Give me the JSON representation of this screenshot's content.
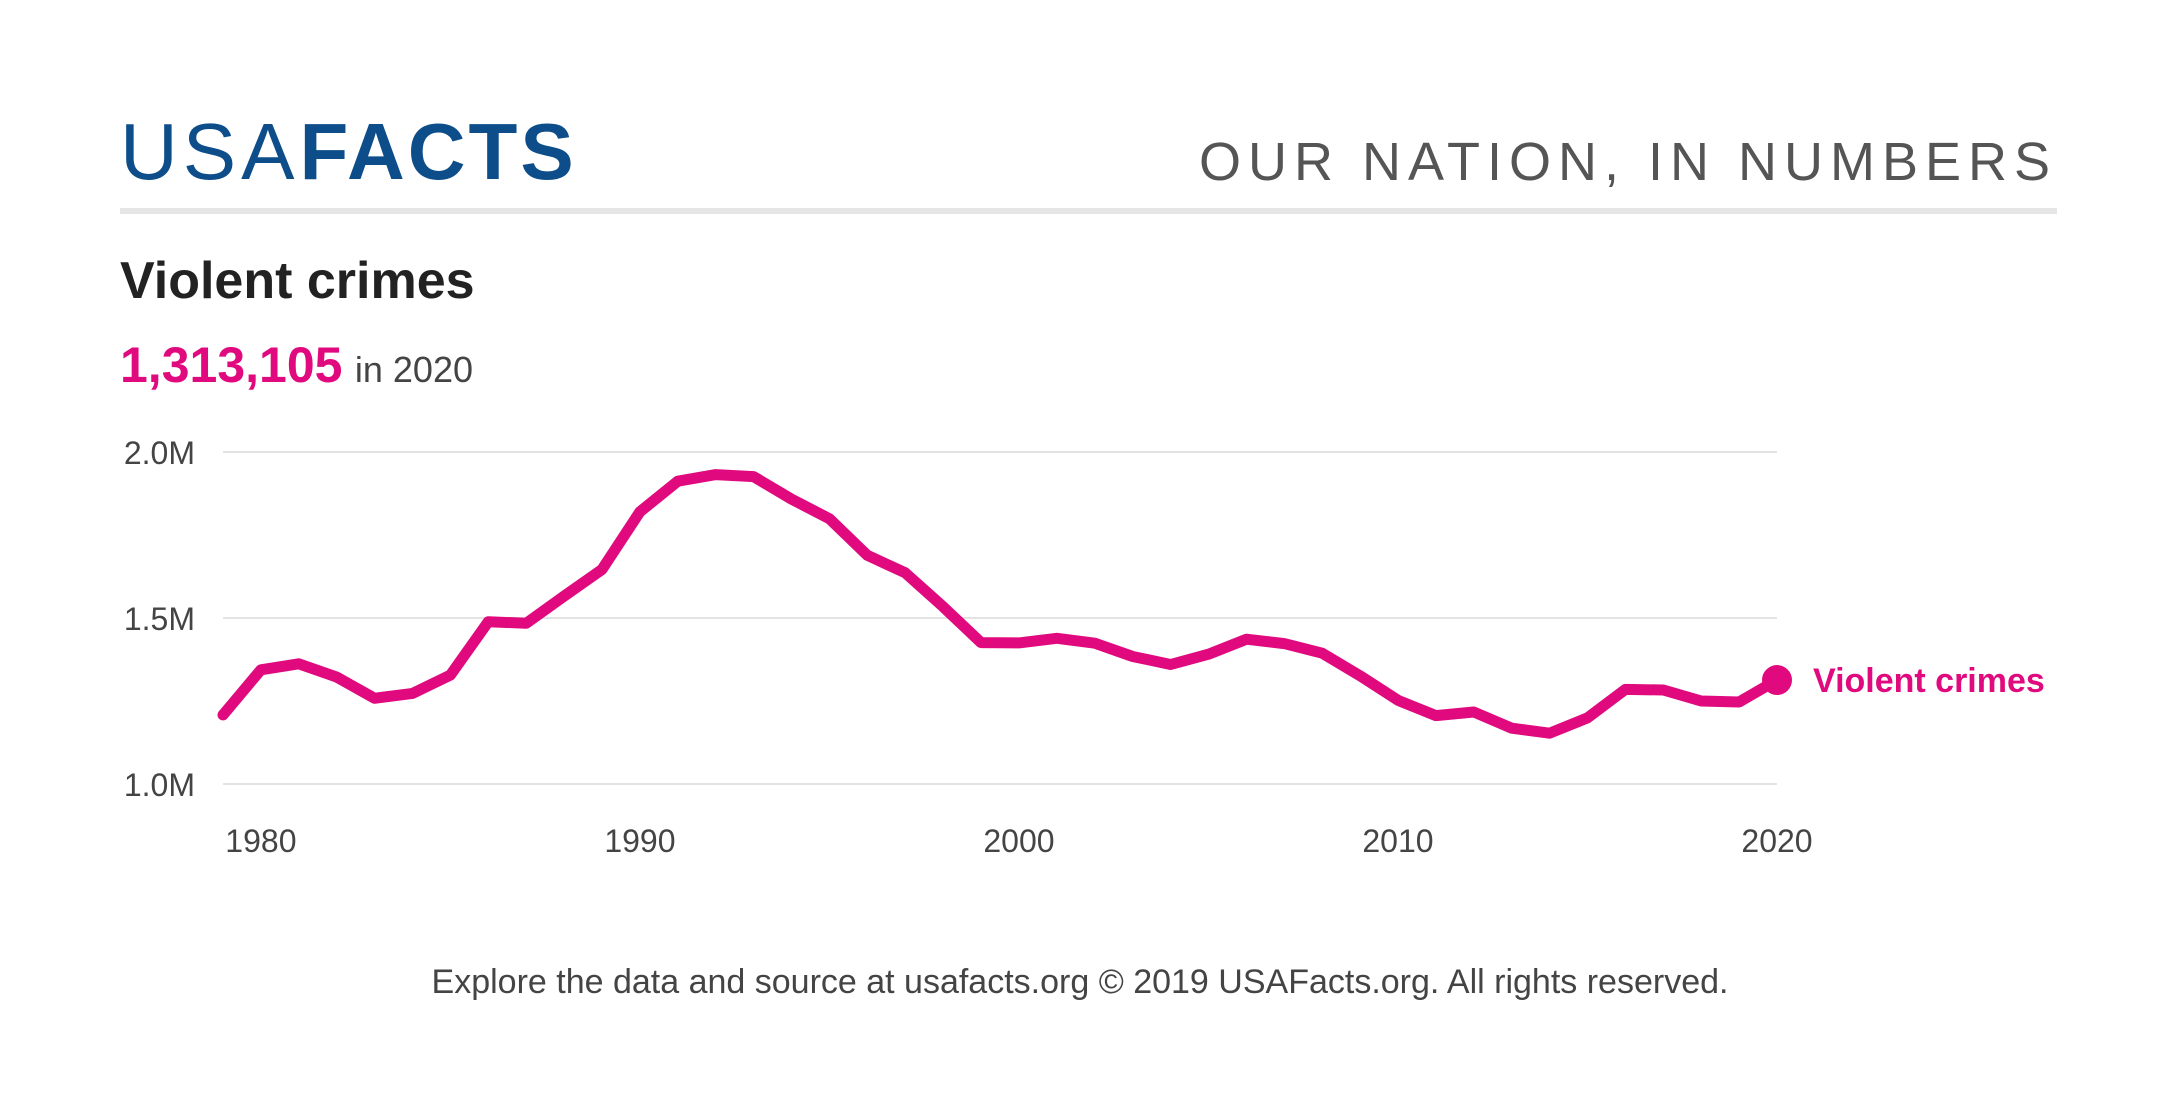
{
  "header": {
    "logo_light": "USA",
    "logo_bold": "FACTS",
    "tagline": "OUR NATION, IN NUMBERS"
  },
  "title": "Violent crimes",
  "headline": {
    "value": "1,313,105",
    "suffix": "in 2020"
  },
  "footer": "Explore the data and source at usafacts.org © 2019 USAFacts.org. All rights reserved.",
  "colors": {
    "brand": "#0d4d8a",
    "series": "#e0097e",
    "grid": "#e3e3e3",
    "text": "#444444"
  },
  "chart_data": {
    "type": "line",
    "title": "Violent crimes",
    "xlabel": "",
    "ylabel": "",
    "x_ticks": [
      "1980",
      "1990",
      "2000",
      "2010",
      "2020"
    ],
    "y_ticks": [
      "1.0M",
      "1.5M",
      "2.0M"
    ],
    "ylim": [
      1000000,
      2000000
    ],
    "xlim": [
      1979,
      2020
    ],
    "grid": true,
    "series": [
      {
        "name": "Violent crimes",
        "x": [
          1979,
          1980,
          1981,
          1982,
          1983,
          1984,
          1985,
          1986,
          1987,
          1988,
          1989,
          1990,
          1991,
          1992,
          1993,
          1994,
          1995,
          1996,
          1997,
          1998,
          1999,
          2000,
          2001,
          2002,
          2003,
          2004,
          2005,
          2006,
          2007,
          2008,
          2009,
          2010,
          2011,
          2012,
          2013,
          2014,
          2015,
          2016,
          2017,
          2018,
          2019,
          2020
        ],
        "values": [
          1208000,
          1344000,
          1362000,
          1322000,
          1258000,
          1273000,
          1328000,
          1489000,
          1484000,
          1566000,
          1646000,
          1820000,
          1912000,
          1932000,
          1926000,
          1858000,
          1799000,
          1689000,
          1636000,
          1534000,
          1426000,
          1425000,
          1439000,
          1424000,
          1384000,
          1360000,
          1391000,
          1436000,
          1423000,
          1394000,
          1326000,
          1252000,
          1206000,
          1217000,
          1168000,
          1153000,
          1199000,
          1285000,
          1283000,
          1250000,
          1247000,
          1313105
        ]
      }
    ],
    "end_label": "Violent crimes"
  }
}
